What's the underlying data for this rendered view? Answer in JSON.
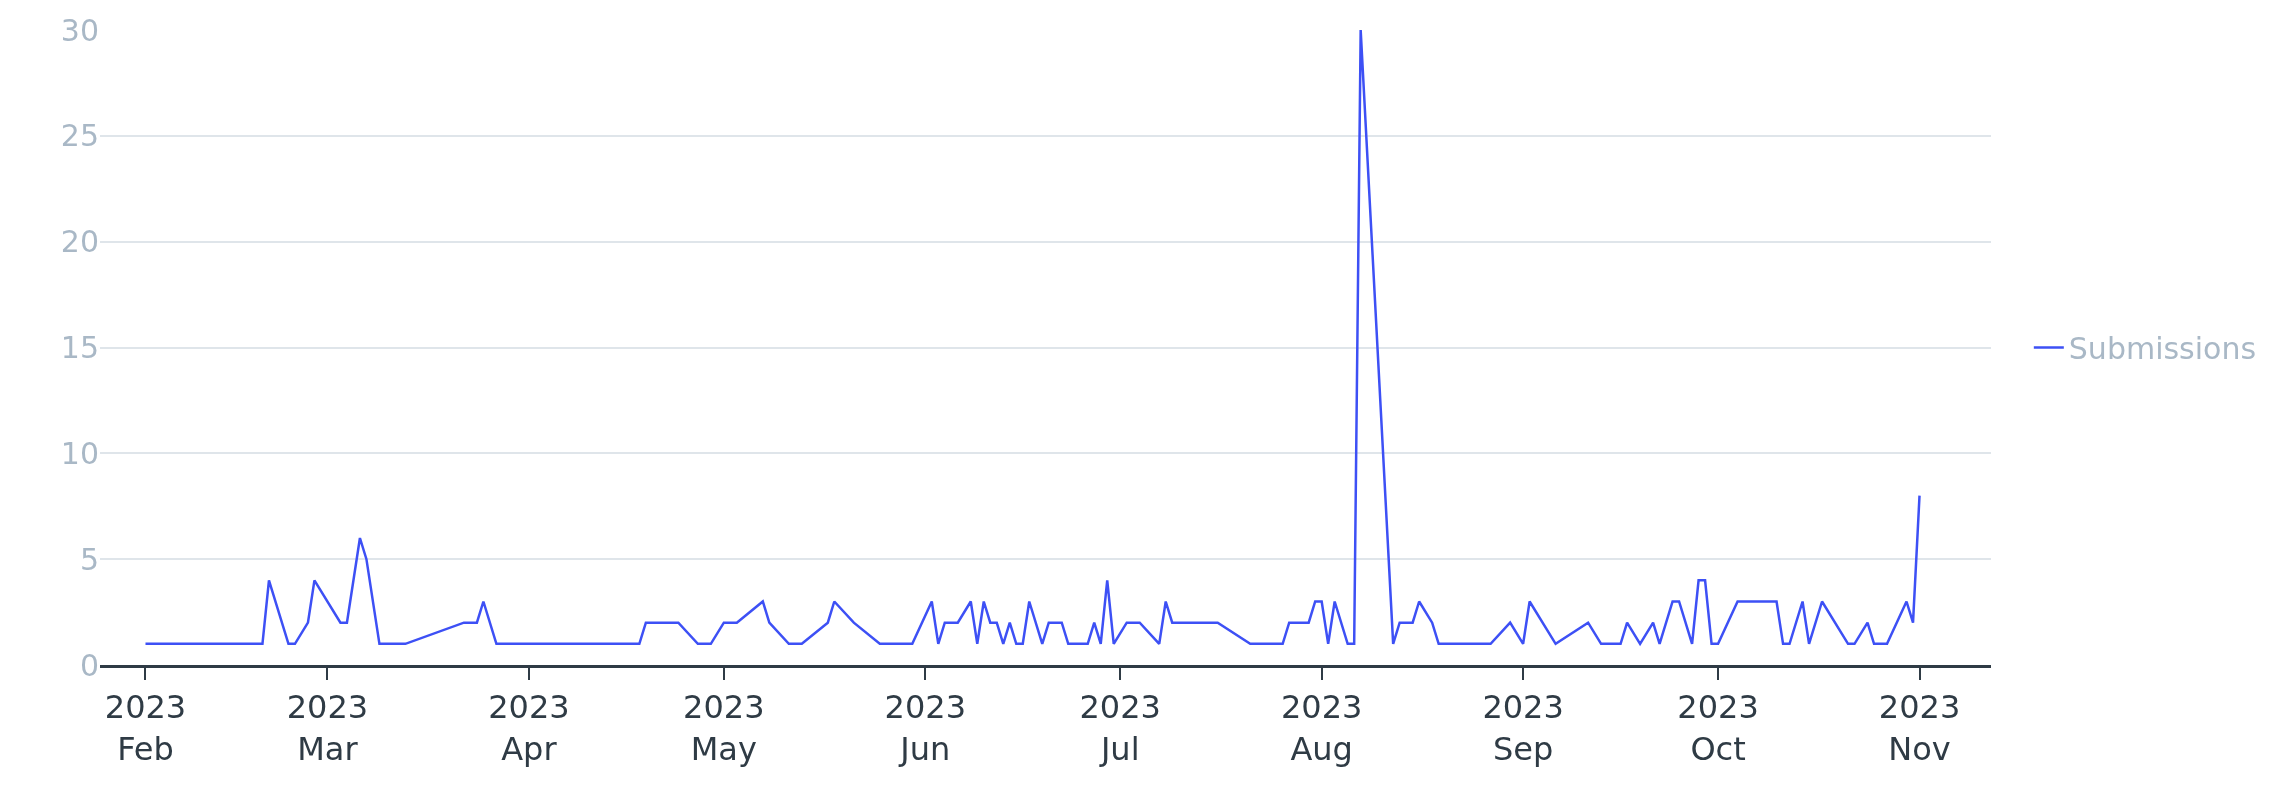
{
  "chart_data": {
    "type": "line",
    "x": [
      "2023-02-01",
      "2023-02-19",
      "2023-02-20",
      "2023-02-23",
      "2023-02-24",
      "2023-02-26",
      "2023-02-27",
      "2023-03-03",
      "2023-03-04",
      "2023-03-06",
      "2023-03-07",
      "2023-03-09",
      "2023-03-13",
      "2023-03-22",
      "2023-03-24",
      "2023-03-25",
      "2023-03-27",
      "2023-04-18",
      "2023-04-19",
      "2023-04-24",
      "2023-04-27",
      "2023-04-29",
      "2023-05-01",
      "2023-05-03",
      "2023-05-07",
      "2023-05-08",
      "2023-05-11",
      "2023-05-13",
      "2023-05-17",
      "2023-05-18",
      "2023-05-21",
      "2023-05-25",
      "2023-05-30",
      "2023-06-02",
      "2023-06-03",
      "2023-06-04",
      "2023-06-06",
      "2023-06-08",
      "2023-06-09",
      "2023-06-10",
      "2023-06-11",
      "2023-06-12",
      "2023-06-13",
      "2023-06-14",
      "2023-06-15",
      "2023-06-16",
      "2023-06-17",
      "2023-06-19",
      "2023-06-20",
      "2023-06-22",
      "2023-06-23",
      "2023-06-26",
      "2023-06-27",
      "2023-06-28",
      "2023-06-29",
      "2023-06-30",
      "2023-07-02",
      "2023-07-04",
      "2023-07-07",
      "2023-07-08",
      "2023-07-09",
      "2023-07-16",
      "2023-07-21",
      "2023-07-26",
      "2023-07-27",
      "2023-07-30",
      "2023-07-31",
      "2023-08-01",
      "2023-08-02",
      "2023-08-03",
      "2023-08-05",
      "2023-08-06",
      "2023-08-07",
      "2023-08-12",
      "2023-08-13",
      "2023-08-15",
      "2023-08-16",
      "2023-08-18",
      "2023-08-19",
      "2023-08-27",
      "2023-08-30",
      "2023-09-01",
      "2023-09-02",
      "2023-09-06",
      "2023-09-11",
      "2023-09-13",
      "2023-09-16",
      "2023-09-17",
      "2023-09-19",
      "2023-09-21",
      "2023-09-22",
      "2023-09-24",
      "2023-09-25",
      "2023-09-27",
      "2023-09-28",
      "2023-09-29",
      "2023-09-30",
      "2023-10-01",
      "2023-10-04",
      "2023-10-10",
      "2023-10-11",
      "2023-10-12",
      "2023-10-14",
      "2023-10-15",
      "2023-10-17",
      "2023-10-21",
      "2023-10-22",
      "2023-10-24",
      "2023-10-25",
      "2023-10-27",
      "2023-10-30",
      "2023-10-31",
      "2023-11-01"
    ],
    "series": [
      {
        "name": "Submissions",
        "color": "#3d50f5",
        "values": [
          1,
          1,
          4,
          1,
          1,
          2,
          4,
          2,
          2,
          6,
          5,
          1,
          1,
          2,
          2,
          3,
          1,
          1,
          2,
          2,
          1,
          1,
          2,
          2,
          3,
          2,
          1,
          1,
          2,
          3,
          2,
          1,
          1,
          3,
          1,
          2,
          2,
          3,
          1,
          3,
          2,
          2,
          1,
          2,
          1,
          1,
          3,
          1,
          2,
          2,
          1,
          1,
          2,
          1,
          4,
          1,
          2,
          2,
          1,
          3,
          2,
          2,
          1,
          1,
          2,
          2,
          3,
          3,
          1,
          3,
          1,
          1,
          30,
          1,
          2,
          2,
          3,
          2,
          1,
          1,
          2,
          1,
          3,
          1,
          2,
          1,
          1,
          2,
          1,
          2,
          1,
          3,
          3,
          1,
          4,
          4,
          1,
          1,
          3,
          3,
          1,
          1,
          3,
          1,
          3,
          1,
          1,
          2,
          1,
          1,
          3,
          2,
          8
        ]
      }
    ],
    "xlim": [
      "2023-01-25",
      "2023-11-12"
    ],
    "xticks": [
      {
        "value": "2023-02-01",
        "label": "2023\nFeb"
      },
      {
        "value": "2023-03-01",
        "label": "2023\nMar"
      },
      {
        "value": "2023-04-01",
        "label": "2023\nApr"
      },
      {
        "value": "2023-05-01",
        "label": "2023\nMay"
      },
      {
        "value": "2023-06-01",
        "label": "2023\nJun"
      },
      {
        "value": "2023-07-01",
        "label": "2023\nJul"
      },
      {
        "value": "2023-08-01",
        "label": "2023\nAug"
      },
      {
        "value": "2023-09-01",
        "label": "2023\nSep"
      },
      {
        "value": "2023-10-01",
        "label": "2023\nOct"
      },
      {
        "value": "2023-11-01",
        "label": "2023\nNov"
      }
    ],
    "ylim": [
      0,
      30
    ],
    "yticks": [
      0,
      5,
      10,
      15,
      20,
      25,
      30
    ],
    "grid": "y",
    "legend": "right",
    "marker": "none",
    "line_style": "solid"
  }
}
